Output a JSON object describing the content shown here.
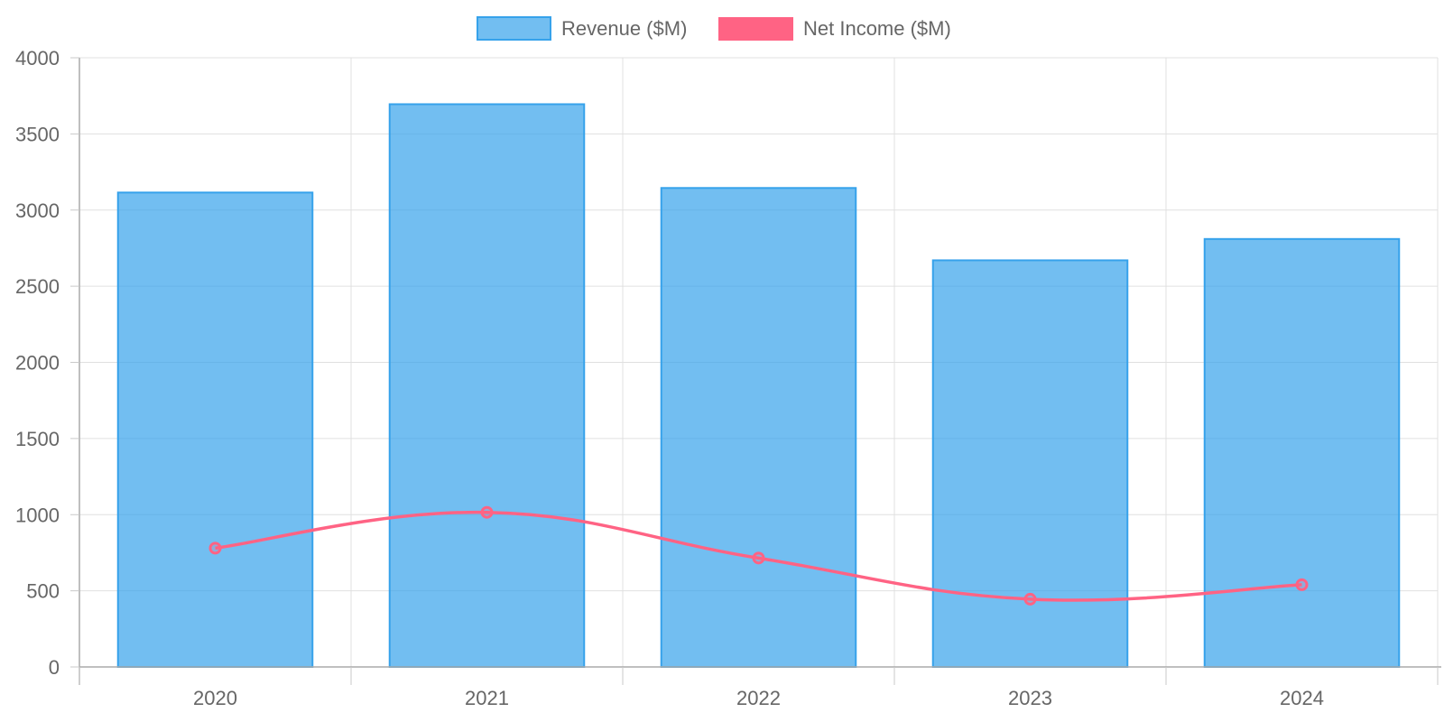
{
  "chart_data": {
    "type": "bar",
    "categories": [
      "2020",
      "2021",
      "2022",
      "2023",
      "2024"
    ],
    "series": [
      {
        "name": "Revenue ($M)",
        "type": "bar",
        "values": [
          3115,
          3695,
          3145,
          2670,
          2810
        ],
        "color": "#36a2eb",
        "fill": "rgba(54,162,235,0.7)"
      },
      {
        "name": "Net Income ($M)",
        "type": "line",
        "values": [
          780,
          1015,
          715,
          445,
          540
        ],
        "color": "#ff6384",
        "smooth": true
      }
    ],
    "y_ticks": [
      "0",
      "500",
      "1000",
      "1500",
      "2000",
      "2500",
      "3000",
      "3500",
      "4000"
    ],
    "ylim": [
      0,
      4000
    ],
    "grid": true,
    "legend_position": "top",
    "title": "",
    "xlabel": "",
    "ylabel": ""
  }
}
